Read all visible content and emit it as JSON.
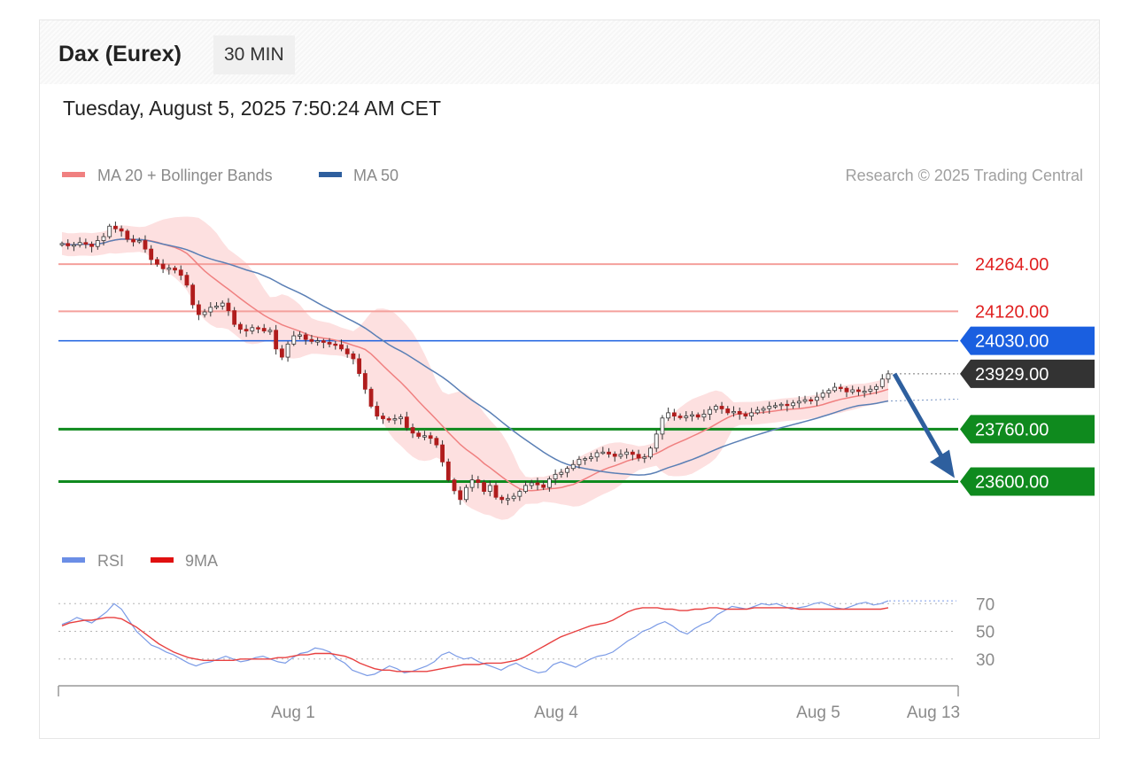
{
  "header": {
    "title": "Dax (Eurex)",
    "interval": "30 MIN",
    "timestamp": "Tuesday, August 5, 2025 7:50:24 AM CET"
  },
  "legend": {
    "items": [
      {
        "label": "MA 20 + Bollinger Bands",
        "color": "#f08080"
      },
      {
        "label": "MA 50",
        "color": "#2e5f9e"
      }
    ],
    "credit": "Research © 2025 Trading Central"
  },
  "chart_data": [
    {
      "type": "candlestick",
      "title": "Dax (Eurex)",
      "interval": "30 MIN",
      "x_ticks": [
        "Aug 1",
        "Aug 4",
        "Aug 5",
        "Aug 13"
      ],
      "levels": [
        {
          "value": 24264.0,
          "label": "24264.00",
          "kind": "resistance",
          "color": "#f4a09c",
          "text_color": "#e02020"
        },
        {
          "value": 24120.0,
          "label": "24120.00",
          "kind": "resistance",
          "color": "#f4a09c",
          "text_color": "#e02020"
        },
        {
          "value": 24030.0,
          "label": "24030.00",
          "kind": "pivot",
          "color": "#1a5fe0",
          "text_color": "#ffffff"
        },
        {
          "value": 23929.0,
          "label": "23929.00",
          "kind": "last",
          "color": "#333333",
          "text_color": "#ffffff"
        },
        {
          "value": 23760.0,
          "label": "23760.00",
          "kind": "support",
          "color": "#0f8a1e",
          "text_color": "#ffffff"
        },
        {
          "value": 23600.0,
          "label": "23600.00",
          "kind": "support",
          "color": "#0f8a1e",
          "text_color": "#ffffff"
        }
      ],
      "close": [
        24327,
        24320,
        24323,
        24330,
        24325,
        24318,
        24336,
        24348,
        24380,
        24372,
        24365,
        24340,
        24332,
        24336,
        24310,
        24278,
        24264,
        24250,
        24252,
        24246,
        24230,
        24200,
        24140,
        24110,
        24118,
        24132,
        24136,
        24145,
        24122,
        24080,
        24065,
        24060,
        24070,
        24068,
        24060,
        24062,
        24005,
        23980,
        24020,
        24045,
        24048,
        24034,
        24028,
        24030,
        24025,
        24020,
        24018,
        24005,
        23990,
        23975,
        23930,
        23882,
        23830,
        23800,
        23792,
        23788,
        23792,
        23797,
        23765,
        23748,
        23738,
        23740,
        23732,
        23712,
        23660,
        23605,
        23572,
        23545,
        23582,
        23605,
        23597,
        23570,
        23588,
        23552,
        23545,
        23548,
        23555,
        23570,
        23588,
        23596,
        23590,
        23582,
        23608,
        23622,
        23628,
        23640,
        23652,
        23668,
        23670,
        23675,
        23688,
        23690,
        23684,
        23677,
        23683,
        23690,
        23683,
        23672,
        23675,
        23702,
        23745,
        23794,
        23810,
        23800,
        23795,
        23800,
        23804,
        23797,
        23806,
        23820,
        23830,
        23822,
        23810,
        23814,
        23806,
        23800,
        23810,
        23818,
        23823,
        23830,
        23832,
        23836,
        23832,
        23840,
        23845,
        23850,
        23848,
        23858,
        23870,
        23878,
        23888,
        23885,
        23874,
        23880,
        23875,
        23876,
        23882,
        23890,
        23913,
        23929
      ],
      "y_range": [
        23420,
        24470
      ],
      "rsi": {
        "ticks": [
          70,
          50,
          30
        ],
        "rsi": [
          55,
          57,
          60,
          58,
          56,
          60,
          64,
          70,
          66,
          58,
          50,
          45,
          40,
          38,
          35,
          33,
          30,
          27,
          25,
          27,
          28,
          30,
          32,
          30,
          28,
          29,
          31,
          32,
          30,
          28,
          27,
          31,
          34,
          35,
          38,
          37,
          35,
          30,
          27,
          22,
          20,
          18,
          19,
          22,
          25,
          23,
          20,
          21,
          23,
          25,
          28,
          33,
          35,
          32,
          30,
          31,
          28,
          26,
          24,
          22,
          25,
          27,
          24,
          22,
          20,
          21,
          26,
          28,
          26,
          24,
          27,
          30,
          32,
          33,
          35,
          39,
          43,
          46,
          50,
          52,
          55,
          57,
          54,
          50,
          48,
          52,
          55,
          57,
          62,
          65,
          68,
          67,
          66,
          68,
          70,
          69,
          70,
          68,
          66,
          67,
          68,
          70,
          71,
          69,
          67,
          66,
          68,
          70,
          71,
          69,
          70,
          72
        ],
        "ma9": [
          54,
          56,
          57,
          58,
          58,
          59,
          60,
          60,
          59,
          56,
          53,
          49,
          45,
          41,
          38,
          35,
          33,
          31,
          30,
          29,
          29,
          29,
          29,
          29,
          30,
          30,
          30,
          30,
          30,
          31,
          31,
          32,
          33,
          33,
          34,
          34,
          34,
          33,
          32,
          30,
          27,
          25,
          23,
          22,
          22,
          21,
          21,
          21,
          21,
          21,
          22,
          23,
          24,
          25,
          26,
          26,
          26,
          27,
          27,
          27,
          28,
          29,
          31,
          34,
          37,
          40,
          43,
          46,
          48,
          50,
          52,
          54,
          55,
          56,
          58,
          61,
          64,
          66,
          67,
          67,
          67,
          66,
          66,
          65,
          65,
          66,
          66,
          67,
          67,
          66,
          66,
          66,
          66,
          67,
          67,
          67,
          67,
          67,
          67,
          66,
          66,
          66,
          66,
          66,
          66,
          66,
          66,
          66,
          66,
          66,
          66,
          67
        ]
      }
    }
  ]
}
